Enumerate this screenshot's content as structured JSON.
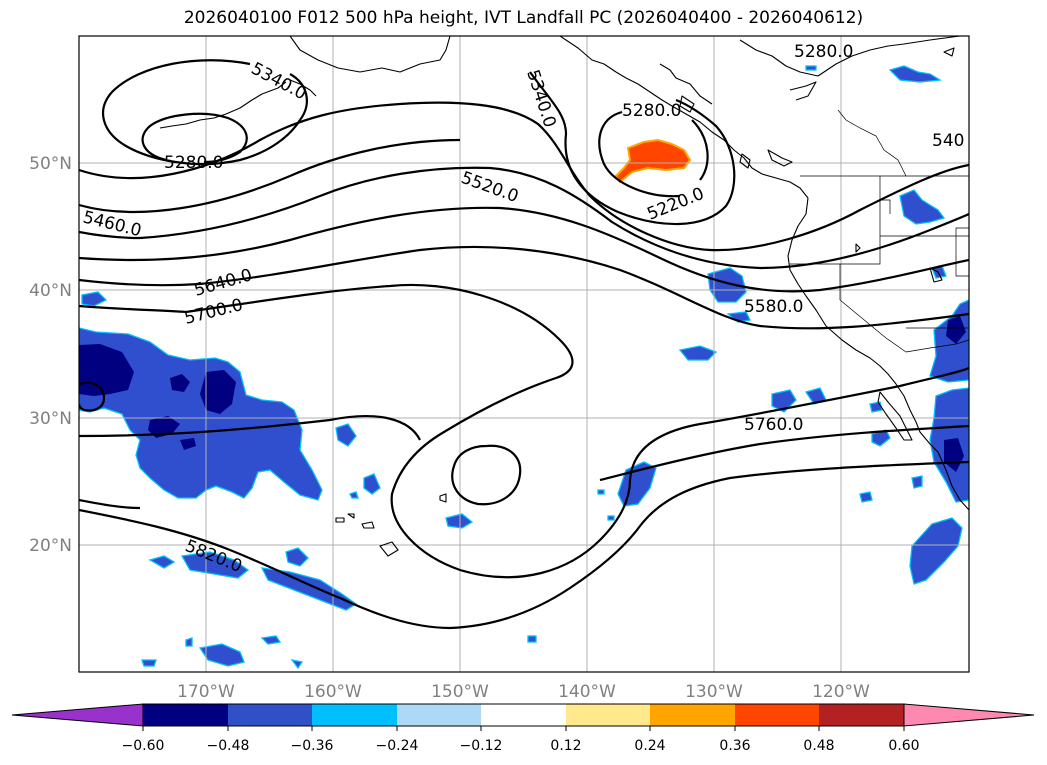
{
  "title": "2026040100 F012 500 hPa height, IVT Landfall PC (2026040400 - 2026040612)",
  "map": {
    "projection": "PlateCarree",
    "lon_range": [
      -180,
      -110
    ],
    "lat_range": [
      10,
      60
    ],
    "lat_labels": [
      {
        "lat": 50,
        "text": "50°N"
      },
      {
        "lat": 40,
        "text": "40°N"
      },
      {
        "lat": 30,
        "text": "30°N"
      },
      {
        "lat": 20,
        "text": "20°N"
      }
    ],
    "lon_labels": [
      {
        "lon": -170,
        "text": "170°W"
      },
      {
        "lon": -160,
        "text": "160°W"
      },
      {
        "lon": -150,
        "text": "150°W"
      },
      {
        "lon": -140,
        "text": "140°W"
      },
      {
        "lon": -130,
        "text": "130°W"
      },
      {
        "lon": -120,
        "text": "120°W"
      }
    ],
    "gridlines": true,
    "contour_labels": [
      "5340.0",
      "5280.0",
      "5460.0",
      "5640.0",
      "5700.0",
      "5340.0",
      "5520.0",
      "5280.0",
      "5220.0",
      "5280.0",
      "540",
      "5580.0",
      "5760.0",
      "5820.0"
    ]
  },
  "colorbar": {
    "ticks": [
      "−0.60",
      "−0.48",
      "−0.36",
      "−0.24",
      "−0.12",
      "0.12",
      "0.24",
      "0.36",
      "0.48",
      "0.60"
    ],
    "extend": "both",
    "colors": [
      "#000080",
      "#3050c8",
      "#00bfff",
      "#add8f6",
      "#ffffff",
      "#ffe98c",
      "#ffa500",
      "#ff4500",
      "#b22222",
      "#ff88b0"
    ],
    "under_color": "#9932cc",
    "over_color": "#ff88b0"
  }
}
